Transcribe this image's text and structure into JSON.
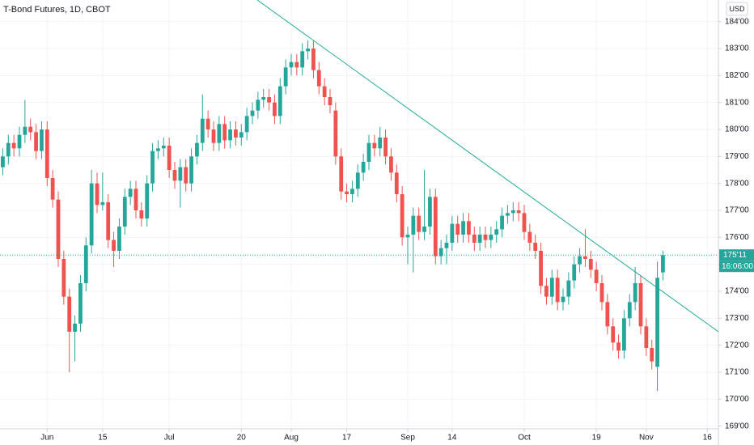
{
  "chart_data": {
    "type": "candlestick",
    "title": "T-Bond Futures, 1D, CBOT",
    "currency": "USD",
    "up_color": "#26a69a",
    "down_color": "#ef5350",
    "grid": true,
    "last_price": {
      "value": 175.34375,
      "label": "175'11"
    },
    "countdown": "16:06:00",
    "xlim": [
      -0.5,
      129
    ],
    "ylim": [
      168.9,
      184.8
    ],
    "xticks": [
      {
        "value": 8,
        "label": "Jun"
      },
      {
        "value": 18,
        "label": "15"
      },
      {
        "value": 30,
        "label": "Jul"
      },
      {
        "value": 43,
        "label": "20"
      },
      {
        "value": 52,
        "label": "Aug"
      },
      {
        "value": 62,
        "label": "17"
      },
      {
        "value": 73,
        "label": "Sep"
      },
      {
        "value": 81,
        "label": "14"
      },
      {
        "value": 94,
        "label": "Oct"
      },
      {
        "value": 107,
        "label": "19"
      },
      {
        "value": 116,
        "label": "Nov"
      },
      {
        "value": 127,
        "label": "16"
      }
    ],
    "yticks": [
      {
        "value": 184,
        "label": "184'00"
      },
      {
        "value": 183,
        "label": "183'00"
      },
      {
        "value": 182,
        "label": "182'00"
      },
      {
        "value": 181,
        "label": "181'00"
      },
      {
        "value": 180,
        "label": "180'00"
      },
      {
        "value": 179,
        "label": "179'00"
      },
      {
        "value": 178,
        "label": "178'00"
      },
      {
        "value": 177,
        "label": "177'00"
      },
      {
        "value": 176,
        "label": "176'00"
      },
      {
        "value": 175,
        "label": "175'00"
      },
      {
        "value": 174,
        "label": "174'00"
      },
      {
        "value": 173,
        "label": "173'00"
      },
      {
        "value": 172,
        "label": "172'00"
      },
      {
        "value": 171,
        "label": "171'00"
      },
      {
        "value": 170,
        "label": "170'00"
      },
      {
        "value": 169,
        "label": "169'00"
      }
    ],
    "ohlc": [
      [
        178.6,
        179.3,
        178.3,
        179.0
      ],
      [
        179.0,
        179.8,
        178.7,
        179.5
      ],
      [
        179.5,
        179.8,
        179.0,
        179.3
      ],
      [
        179.3,
        180.1,
        179.0,
        179.8
      ],
      [
        179.8,
        181.1,
        179.5,
        180.1
      ],
      [
        180.1,
        180.4,
        179.6,
        179.9
      ],
      [
        179.9,
        180.2,
        178.9,
        179.2
      ],
      [
        179.2,
        180.3,
        178.9,
        180.0
      ],
      [
        180.0,
        180.3,
        177.9,
        178.2
      ],
      [
        178.2,
        178.5,
        177.1,
        177.4
      ],
      [
        177.4,
        177.7,
        174.9,
        175.2
      ],
      [
        175.2,
        175.5,
        173.5,
        173.8
      ],
      [
        173.8,
        174.1,
        171.0,
        172.5
      ],
      [
        172.5,
        173.1,
        171.4,
        172.8
      ],
      [
        172.8,
        174.6,
        172.5,
        174.3
      ],
      [
        174.3,
        176.0,
        174.0,
        175.7
      ],
      [
        175.7,
        178.5,
        175.4,
        178.0
      ],
      [
        178.0,
        178.4,
        176.9,
        177.2
      ],
      [
        177.2,
        178.4,
        177.0,
        177.3
      ],
      [
        177.3,
        177.6,
        175.6,
        175.9
      ],
      [
        175.9,
        176.2,
        174.9,
        175.5
      ],
      [
        175.5,
        176.7,
        175.2,
        176.4
      ],
      [
        176.4,
        177.8,
        176.1,
        177.5
      ],
      [
        177.5,
        178.1,
        177.2,
        177.8
      ],
      [
        177.8,
        178.1,
        176.7,
        177.0
      ],
      [
        177.0,
        177.3,
        176.4,
        176.7
      ],
      [
        176.7,
        178.3,
        176.4,
        178.0
      ],
      [
        178.0,
        179.5,
        177.7,
        179.2
      ],
      [
        179.2,
        179.6,
        178.9,
        179.3
      ],
      [
        179.3,
        179.7,
        179.0,
        179.4
      ],
      [
        179.4,
        179.7,
        178.2,
        178.5
      ],
      [
        178.5,
        178.8,
        177.8,
        178.1
      ],
      [
        178.1,
        178.9,
        177.1,
        178.6
      ],
      [
        178.6,
        178.9,
        177.7,
        178.0
      ],
      [
        178.0,
        179.3,
        177.7,
        179.0
      ],
      [
        179.0,
        179.8,
        178.7,
        179.5
      ],
      [
        179.5,
        181.3,
        179.2,
        180.4
      ],
      [
        180.4,
        180.7,
        179.7,
        180.0
      ],
      [
        180.0,
        180.3,
        179.2,
        179.5
      ],
      [
        179.5,
        180.5,
        179.2,
        180.2
      ],
      [
        180.2,
        180.5,
        179.3,
        179.6
      ],
      [
        179.6,
        180.3,
        179.3,
        180.0
      ],
      [
        180.0,
        180.3,
        179.4,
        179.7
      ],
      [
        179.7,
        180.2,
        179.4,
        179.9
      ],
      [
        179.9,
        180.8,
        179.6,
        180.5
      ],
      [
        180.5,
        181.0,
        180.2,
        180.7
      ],
      [
        180.7,
        181.4,
        180.4,
        181.1
      ],
      [
        181.1,
        181.5,
        180.8,
        181.2
      ],
      [
        181.2,
        181.5,
        180.7,
        181.0
      ],
      [
        181.0,
        181.3,
        180.2,
        180.5
      ],
      [
        180.5,
        181.9,
        180.2,
        181.6
      ],
      [
        181.6,
        182.6,
        181.3,
        182.3
      ],
      [
        182.3,
        182.8,
        182.0,
        182.5
      ],
      [
        182.5,
        182.8,
        182.0,
        182.3
      ],
      [
        182.3,
        183.2,
        182.0,
        182.9
      ],
      [
        182.9,
        183.3,
        182.6,
        183.0
      ],
      [
        183.0,
        183.3,
        181.9,
        182.2
      ],
      [
        182.2,
        182.5,
        181.3,
        181.6
      ],
      [
        181.6,
        181.9,
        180.9,
        181.2
      ],
      [
        181.2,
        181.5,
        180.6,
        180.9
      ],
      [
        180.7,
        181.0,
        178.7,
        179.0
      ],
      [
        179.0,
        179.3,
        177.4,
        177.7
      ],
      [
        177.7,
        178.0,
        177.3,
        177.6
      ],
      [
        177.6,
        178.1,
        177.3,
        177.8
      ],
      [
        177.8,
        178.7,
        177.5,
        178.4
      ],
      [
        178.4,
        179.1,
        178.1,
        178.8
      ],
      [
        178.8,
        179.8,
        178.5,
        179.5
      ],
      [
        179.5,
        179.8,
        179.0,
        179.3
      ],
      [
        179.3,
        180.1,
        179.0,
        179.7
      ],
      [
        179.7,
        180.0,
        178.7,
        179.0
      ],
      [
        179.0,
        179.3,
        178.1,
        178.4
      ],
      [
        178.4,
        178.7,
        177.3,
        177.6
      ],
      [
        177.6,
        177.9,
        175.7,
        176.0
      ],
      [
        176.0,
        176.4,
        175.0,
        176.1
      ],
      [
        176.1,
        177.1,
        174.7,
        176.8
      ],
      [
        176.8,
        177.1,
        175.9,
        176.2
      ],
      [
        176.2,
        178.5,
        175.9,
        176.4
      ],
      [
        176.4,
        177.8,
        176.1,
        177.5
      ],
      [
        177.5,
        177.8,
        175.0,
        175.3
      ],
      [
        175.3,
        175.9,
        175.0,
        175.6
      ],
      [
        175.6,
        176.1,
        175.0,
        175.8
      ],
      [
        175.8,
        176.8,
        175.5,
        176.5
      ],
      [
        176.5,
        176.8,
        175.8,
        176.1
      ],
      [
        176.1,
        176.9,
        175.8,
        176.6
      ],
      [
        176.6,
        176.9,
        175.8,
        176.1
      ],
      [
        176.1,
        176.4,
        175.5,
        175.8
      ],
      [
        175.8,
        176.4,
        175.5,
        176.1
      ],
      [
        176.1,
        176.4,
        175.6,
        175.9
      ],
      [
        175.9,
        176.4,
        175.6,
        176.1
      ],
      [
        176.1,
        176.6,
        175.8,
        176.3
      ],
      [
        176.3,
        177.1,
        176.0,
        176.8
      ],
      [
        176.8,
        177.2,
        176.5,
        176.9
      ],
      [
        176.9,
        177.3,
        176.6,
        177.0
      ],
      [
        177.0,
        177.3,
        176.6,
        176.9
      ],
      [
        176.9,
        177.2,
        175.9,
        176.2
      ],
      [
        176.2,
        176.5,
        175.5,
        175.8
      ],
      [
        175.8,
        176.1,
        175.2,
        175.5
      ],
      [
        175.5,
        175.8,
        173.9,
        174.2
      ],
      [
        174.2,
        174.5,
        173.5,
        173.8
      ],
      [
        173.8,
        174.8,
        173.5,
        174.5
      ],
      [
        174.5,
        174.8,
        173.3,
        173.6
      ],
      [
        173.6,
        174.1,
        173.3,
        173.8
      ],
      [
        173.8,
        174.7,
        173.5,
        174.4
      ],
      [
        174.4,
        175.3,
        174.1,
        175.0
      ],
      [
        175.0,
        175.6,
        174.7,
        175.3
      ],
      [
        175.3,
        176.3,
        174.9,
        175.2
      ],
      [
        175.2,
        175.5,
        174.5,
        174.8
      ],
      [
        174.8,
        175.1,
        174.0,
        174.3
      ],
      [
        174.3,
        174.6,
        173.3,
        173.6
      ],
      [
        173.6,
        173.9,
        172.4,
        172.7
      ],
      [
        172.7,
        173.0,
        171.8,
        172.1
      ],
      [
        172.1,
        172.4,
        171.5,
        171.8
      ],
      [
        171.8,
        173.3,
        171.5,
        173.0
      ],
      [
        173.0,
        173.9,
        172.7,
        173.6
      ],
      [
        173.6,
        174.9,
        173.3,
        174.3
      ],
      [
        174.3,
        174.6,
        172.4,
        172.7
      ],
      [
        172.7,
        173.0,
        171.6,
        171.9
      ],
      [
        171.9,
        172.2,
        171.1,
        171.4
      ],
      [
        171.2,
        175.1,
        170.3,
        174.5
      ],
      [
        174.7,
        175.5,
        174.4,
        175.34375
      ]
    ]
  }
}
